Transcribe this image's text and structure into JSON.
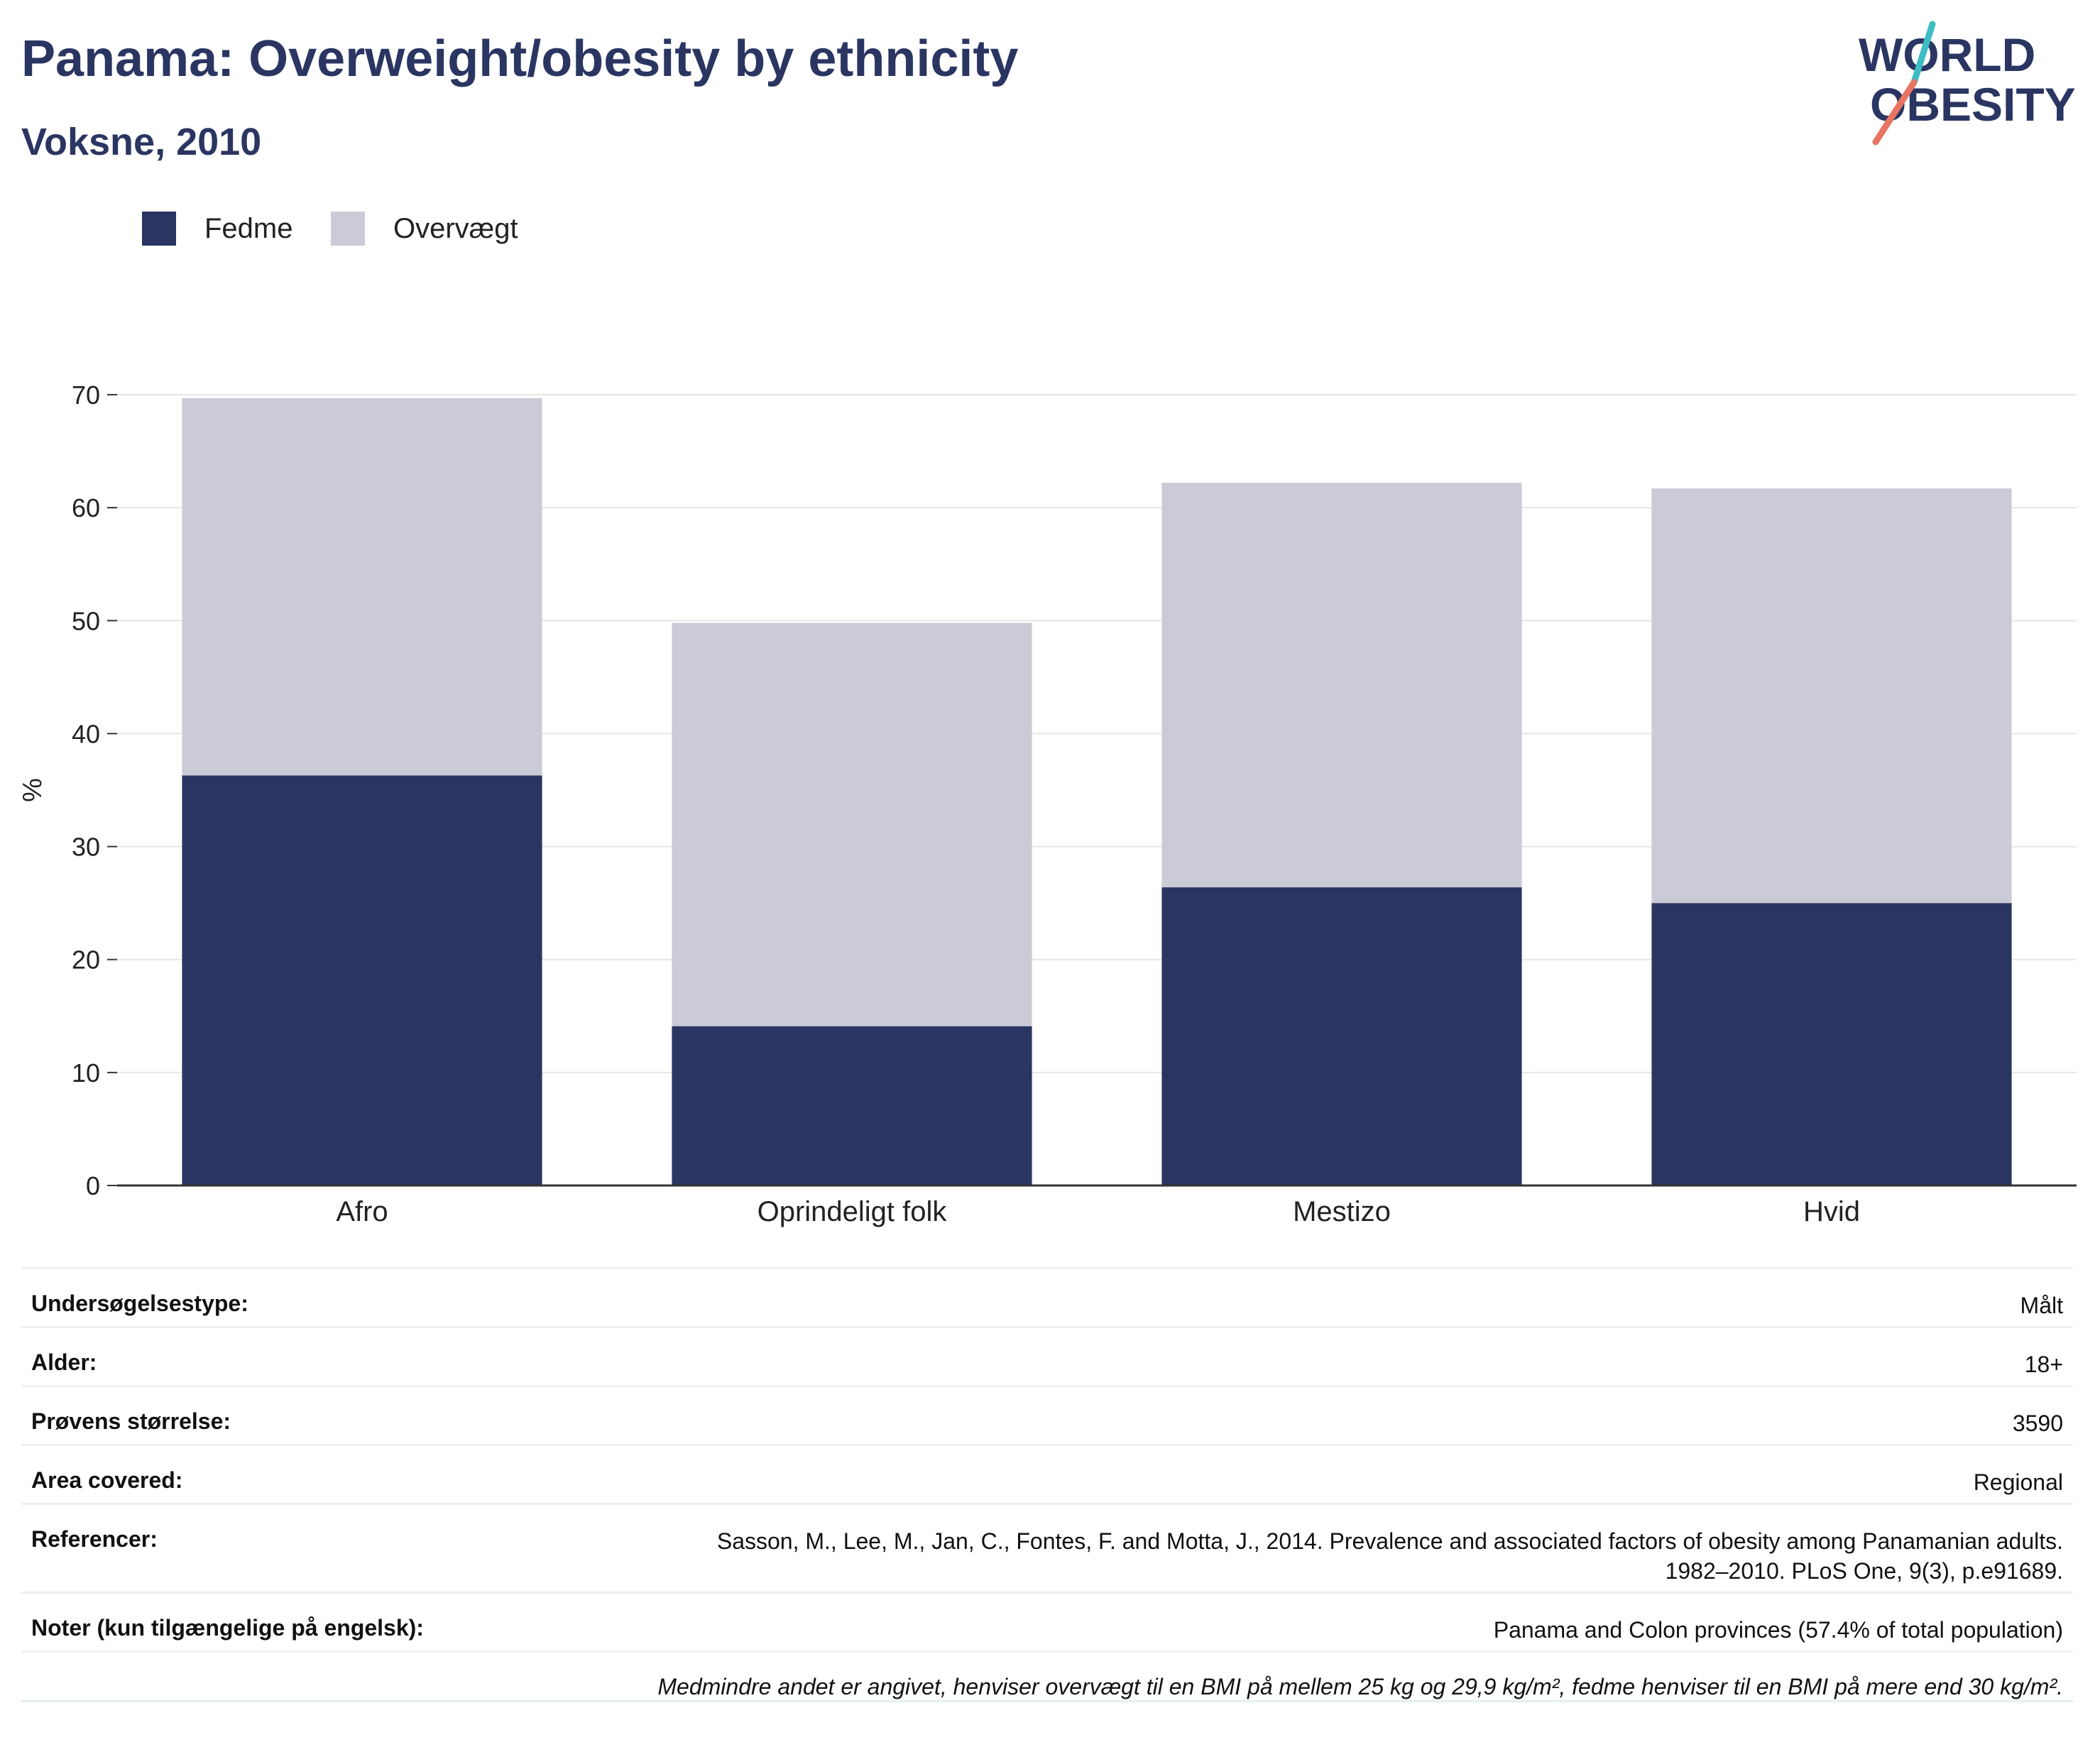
{
  "header": {
    "title": "Panama: Overweight/obesity by ethnicity",
    "subtitle": "Voksne, 2010"
  },
  "logo": {
    "line1": "WORLD",
    "line2": "OBESITY"
  },
  "legend": [
    {
      "label": "Fedme",
      "color": "#2a3562"
    },
    {
      "label": "Overvægt",
      "color": "#cacbd7"
    }
  ],
  "colors": {
    "obesity": "#2a3562",
    "overweight": "#cacbd7",
    "text": "#2a3562",
    "logo_teal": "#3ebcc4",
    "logo_coral": "#e87462"
  },
  "chart_data": {
    "type": "bar",
    "stacked": true,
    "categories": [
      "Afro",
      "Oprindeligt folk",
      "Mestizo",
      "Hvid"
    ],
    "series": [
      {
        "name": "Fedme",
        "values": [
          36.3,
          14.1,
          26.4,
          25.0
        ]
      },
      {
        "name": "Overvægt",
        "values": [
          33.4,
          35.7,
          35.8,
          36.7
        ]
      }
    ],
    "xlabel": "",
    "ylabel": "%",
    "ylim": [
      0,
      70
    ],
    "yticks": [
      0,
      10,
      20,
      30,
      40,
      50,
      60,
      70
    ],
    "grid": true,
    "legend_position": "top-left"
  },
  "info": [
    {
      "key": "Undersøgelsestype:",
      "value": "Målt"
    },
    {
      "key": "Alder:",
      "value": "18+"
    },
    {
      "key": "Prøvens størrelse:",
      "value": "3590"
    },
    {
      "key": "Area covered:",
      "value": "Regional"
    },
    {
      "key": "Referencer:",
      "value_line1": "Sasson, M., Lee, M., Jan, C., Fontes, F. and Motta, J., 2014. Prevalence and associated factors of obesity among Panamanian adults.",
      "value_line2": "1982–2010. PLoS One, 9(3), p.e91689."
    },
    {
      "key": "Noter (kun tilgængelige på engelsk):",
      "value": "Panama and Colon provinces (57.4% of total population)"
    }
  ],
  "footnote": "Medmindre andet er angivet, henviser overvægt til en BMI på mellem 25 kg og 29,9 kg/m², fedme henviser til en BMI på mere end 30 kg/m²."
}
